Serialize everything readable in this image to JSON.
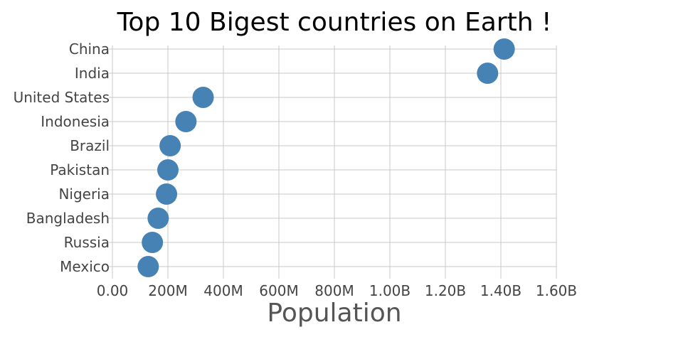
{
  "chart_data": {
    "type": "scatter",
    "title": "Top 10 Bigest countries on Earth !",
    "xlabel": "Population",
    "ylabel": "",
    "xlim": [
      0,
      1600000000
    ],
    "x_ticks": [
      0,
      200000000,
      400000000,
      600000000,
      800000000,
      1000000000,
      1200000000,
      1400000000,
      1600000000
    ],
    "x_tick_labels": [
      "0.00",
      "200M",
      "400M",
      "600M",
      "800M",
      "1.00B",
      "1.20B",
      "1.40B",
      "1.60B"
    ],
    "categories": [
      "China",
      "India",
      "United States",
      "Indonesia",
      "Brazil",
      "Pakistan",
      "Nigeria",
      "Bangladesh",
      "Russia",
      "Mexico"
    ],
    "values": [
      1412000000,
      1352000000,
      327000000,
      265000000,
      208000000,
      200000000,
      195000000,
      165000000,
      144000000,
      129000000
    ],
    "marker_color": "#4682B4",
    "grid": true,
    "legend": "none"
  }
}
